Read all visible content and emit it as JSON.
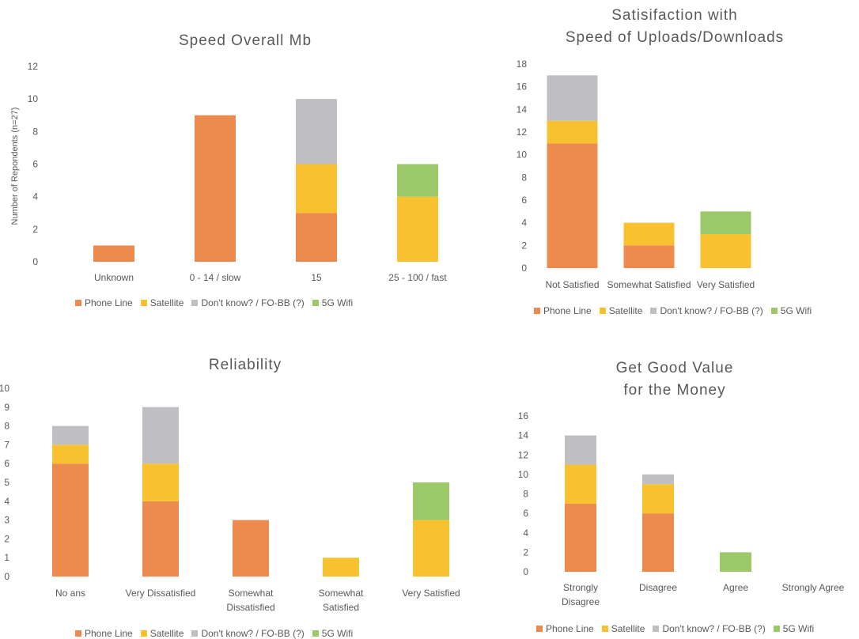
{
  "chart_data": [
    {
      "type": "bar",
      "stacked": true,
      "title": "Speed Overall Mb",
      "ylabel": "Number of Repondents (n=27)",
      "ylim": [
        0,
        12
      ],
      "yticks": [
        0,
        2,
        4,
        6,
        8,
        10,
        12
      ],
      "categories": [
        "Unknown",
        "0 - 14 / slow",
        "15",
        "25 - 100 / fast"
      ],
      "series": [
        {
          "name": "Phone Line",
          "color": "#ED8B4E",
          "values": [
            1,
            9,
            3,
            0
          ]
        },
        {
          "name": "Satellite",
          "color": "#F7C12F",
          "values": [
            0,
            0,
            3,
            4
          ]
        },
        {
          "name": "Don't know? / FO-BB (?)",
          "color": "#BFBFC3",
          "values": [
            0,
            0,
            4,
            0
          ]
        },
        {
          "name": "5G Wifi",
          "color": "#9BC96A",
          "values": [
            0,
            0,
            0,
            2
          ]
        }
      ],
      "legend": "bottom"
    },
    {
      "type": "bar",
      "stacked": true,
      "title_lines": [
        "Satisifaction with",
        "Speed of Uploads/Downloads"
      ],
      "ylim": [
        0,
        18
      ],
      "yticks": [
        0,
        2,
        4,
        6,
        8,
        10,
        12,
        14,
        16,
        18
      ],
      "categories": [
        "Not Satisfied",
        "Somewhat Satisfied",
        "Very Satisfied"
      ],
      "series": [
        {
          "name": "Phone Line",
          "color": "#ED8B4E",
          "values": [
            11,
            2,
            0
          ]
        },
        {
          "name": "Satellite",
          "color": "#F7C12F",
          "values": [
            2,
            2,
            3
          ]
        },
        {
          "name": "Don't know? / FO-BB (?)",
          "color": "#BFBFC3",
          "values": [
            4,
            0,
            0
          ]
        },
        {
          "name": "5G Wifi",
          "color": "#9BC96A",
          "values": [
            0,
            0,
            2
          ]
        }
      ],
      "legend": "bottom"
    },
    {
      "type": "bar",
      "stacked": true,
      "title": "Reliability",
      "ylim": [
        0,
        10
      ],
      "yticks": [
        0,
        1,
        2,
        3,
        4,
        5,
        6,
        7,
        8,
        9,
        10
      ],
      "categories": [
        "No ans",
        "Very Dissatisfied",
        "Somewhat Dissatisfied",
        "Somewhat Satisfied",
        "Very Satisfied"
      ],
      "category_lines": [
        [
          "No ans"
        ],
        [
          "Very Dissatisfied"
        ],
        [
          "Somewhat",
          "Dissatisfied"
        ],
        [
          "Somewhat",
          "Satisfied"
        ],
        [
          "Very Satisfied"
        ]
      ],
      "series": [
        {
          "name": "Phone Line",
          "color": "#ED8B4E",
          "values": [
            6,
            4,
            3,
            0,
            0
          ]
        },
        {
          "name": "Satellite",
          "color": "#F7C12F",
          "values": [
            1,
            2,
            0,
            1,
            3
          ]
        },
        {
          "name": "Don't know? / FO-BB (?)",
          "color": "#BFBFC3",
          "values": [
            1,
            3,
            0,
            0,
            0
          ]
        },
        {
          "name": "5G Wifi",
          "color": "#9BC96A",
          "values": [
            0,
            0,
            0,
            0,
            2
          ]
        }
      ],
      "legend": "bottom"
    },
    {
      "type": "bar",
      "stacked": true,
      "title_lines": [
        "Get Good Value",
        "for the Money"
      ],
      "ylim": [
        0,
        16
      ],
      "yticks": [
        0,
        2,
        4,
        6,
        8,
        10,
        12,
        14,
        16
      ],
      "categories": [
        "Strongly Disagree",
        "Disagree",
        "Agree",
        "Strongly Agree"
      ],
      "category_lines": [
        [
          "Strongly",
          "Disagree"
        ],
        [
          "Disagree"
        ],
        [
          "Agree"
        ],
        [
          "Strongly Agree"
        ]
      ],
      "series": [
        {
          "name": "Phone Line",
          "color": "#ED8B4E",
          "values": [
            7,
            6,
            0,
            0
          ]
        },
        {
          "name": "Satellite",
          "color": "#F7C12F",
          "values": [
            4,
            3,
            0,
            0
          ]
        },
        {
          "name": "Don't know? / FO-BB (?)",
          "color": "#BFBFC3",
          "values": [
            3,
            1,
            0,
            0
          ]
        },
        {
          "name": "5G Wifi",
          "color": "#9BC96A",
          "values": [
            0,
            0,
            2,
            0
          ]
        }
      ],
      "legend": "bottom"
    }
  ]
}
